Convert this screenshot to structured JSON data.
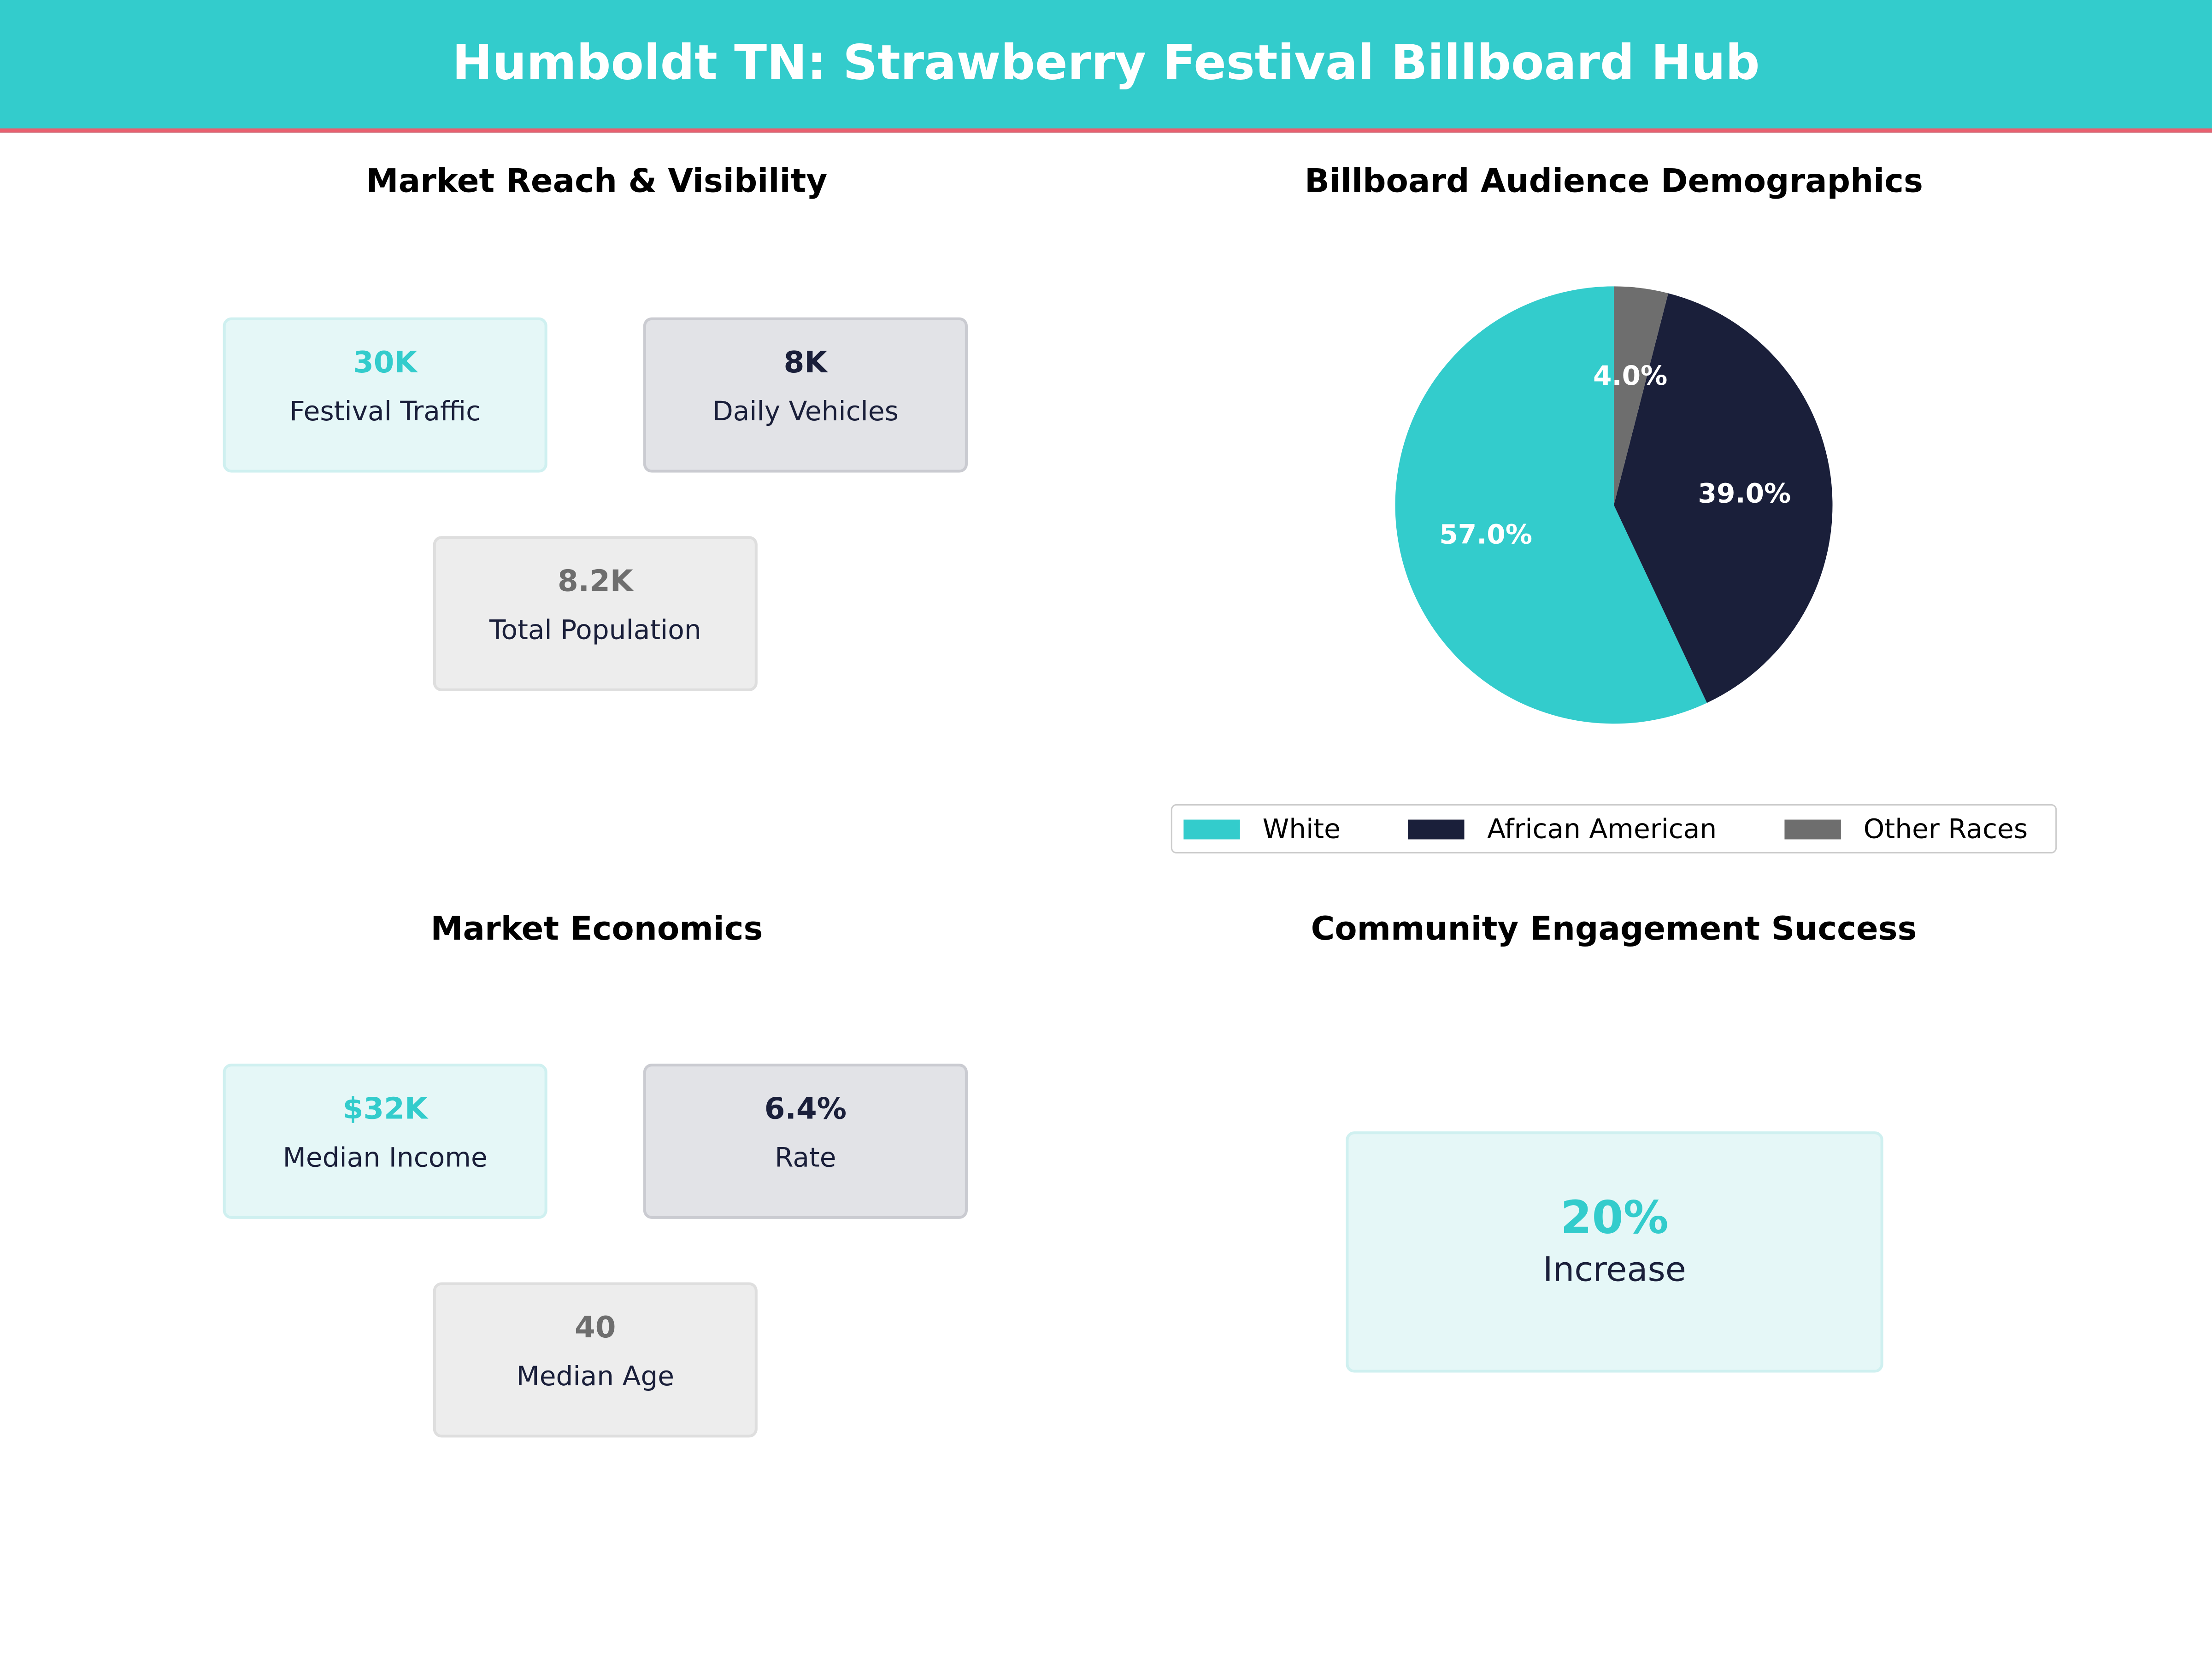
{
  "header": {
    "title": "Humboldt TN: Strawberry Festival Billboard Hub"
  },
  "colors": {
    "teal": "#33CCCC",
    "navy": "#1A1F3A",
    "gray": "#6E6E6E",
    "accent_line": "#E8606F"
  },
  "market_reach": {
    "title": "Market Reach & Visibility",
    "cards": [
      {
        "value": "30K",
        "label": "Festival Traffic"
      },
      {
        "value": "8K",
        "label": "Daily Vehicles"
      },
      {
        "value": "8.2K",
        "label": "Total Population"
      }
    ]
  },
  "market_economics": {
    "title": "Market Economics",
    "cards": [
      {
        "value": "$32K",
        "label": "Median Income"
      },
      {
        "value": "6.4%",
        "label": "Rate"
      },
      {
        "value": "40",
        "label": "Median Age"
      }
    ]
  },
  "engagement": {
    "title": "Community Engagement Success",
    "value": "20%",
    "label": "Increase"
  },
  "chart_data": {
    "type": "pie",
    "title": "Billboard Audience Demographics",
    "categories": [
      "White",
      "African American",
      "Other Races"
    ],
    "values": [
      57.0,
      39.0,
      4.0
    ],
    "labels": [
      "57.0%",
      "39.0%",
      "4.0%"
    ],
    "colors": [
      "#33CCCC",
      "#1A1F3A",
      "#6E6E6E"
    ],
    "start_angle": 90,
    "legend": "bottom"
  }
}
